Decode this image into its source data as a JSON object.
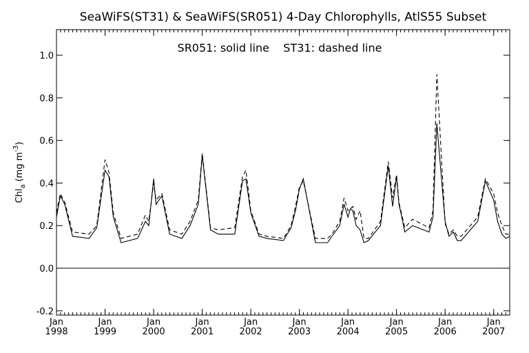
{
  "chart_data": {
    "type": "line",
    "title": "SeaWiFS(ST31) & SeaWiFS(SR051) 4-Day Chlorophylls, AtlS55 Subset",
    "annotation": "SR051: solid line    ST31: dashed line",
    "ylabel": "Chl",
    "ylabel_sub": "a",
    "ylabel_unit": "(mg m",
    "ylabel_sup": "-3",
    "ylabel_close": ")",
    "xlim": [
      1998.0,
      2007.33
    ],
    "ylim": [
      -0.22,
      1.12
    ],
    "y_ticks": [
      -0.2,
      0.0,
      0.2,
      0.4,
      0.6,
      0.8,
      1.0
    ],
    "y_tick_labels": [
      "-0.2",
      "0.0",
      "0.2",
      "0.4",
      "0.6",
      "0.8",
      "1.0"
    ],
    "x_ticks": [
      1998,
      1999,
      2000,
      2001,
      2002,
      2003,
      2004,
      2005,
      2006,
      2007
    ],
    "x_tick_month": "Jan",
    "x_tick_years": [
      "1998",
      "1999",
      "2000",
      "2001",
      "2002",
      "2003",
      "2004",
      "2005",
      "2006",
      "2007"
    ],
    "zero_line": 0.0,
    "grid": false,
    "series": [
      {
        "name": "SR051",
        "style": "solid",
        "color": "#000000",
        "x": [
          1998.0,
          1998.08,
          1998.17,
          1998.33,
          1998.67,
          1998.83,
          1999.0,
          1999.08,
          1999.17,
          1999.33,
          1999.67,
          1999.83,
          1999.9,
          2000.0,
          2000.05,
          2000.17,
          2000.33,
          2000.58,
          2000.75,
          2000.92,
          2001.0,
          2001.17,
          2001.33,
          2001.67,
          2001.83,
          2001.9,
          2002.0,
          2002.17,
          2002.33,
          2002.67,
          2002.83,
          2002.92,
          2003.0,
          2003.08,
          2003.33,
          2003.58,
          2003.67,
          2003.83,
          2003.92,
          2004.0,
          2004.05,
          2004.1,
          2004.17,
          2004.25,
          2004.33,
          2004.42,
          2004.67,
          2004.83,
          2004.92,
          2005.0,
          2005.05,
          2005.1,
          2005.17,
          2005.33,
          2005.67,
          2005.75,
          2005.83,
          2006.0,
          2006.08,
          2006.17,
          2006.25,
          2006.33,
          2006.67,
          2006.83,
          2007.0,
          2007.08,
          2007.17,
          2007.25,
          2007.33
        ],
        "values": [
          0.24,
          0.34,
          0.3,
          0.15,
          0.14,
          0.19,
          0.46,
          0.43,
          0.24,
          0.12,
          0.14,
          0.22,
          0.2,
          0.42,
          0.3,
          0.34,
          0.16,
          0.14,
          0.2,
          0.3,
          0.53,
          0.18,
          0.16,
          0.16,
          0.41,
          0.42,
          0.26,
          0.15,
          0.14,
          0.13,
          0.19,
          0.27,
          0.37,
          0.42,
          0.12,
          0.12,
          0.15,
          0.2,
          0.3,
          0.24,
          0.28,
          0.27,
          0.2,
          0.18,
          0.12,
          0.13,
          0.2,
          0.48,
          0.29,
          0.43,
          0.3,
          0.25,
          0.17,
          0.2,
          0.17,
          0.24,
          0.68,
          0.22,
          0.15,
          0.17,
          0.13,
          0.13,
          0.22,
          0.41,
          0.32,
          0.22,
          0.16,
          0.14,
          0.15
        ]
      },
      {
        "name": "ST31",
        "style": "dashed",
        "color": "#000000",
        "x": [
          1998.0,
          1998.08,
          1998.17,
          1998.33,
          1998.67,
          1998.83,
          1999.0,
          1999.08,
          1999.17,
          1999.33,
          1999.67,
          1999.83,
          1999.9,
          2000.0,
          2000.05,
          2000.17,
          2000.33,
          2000.58,
          2000.75,
          2000.92,
          2001.0,
          2001.17,
          2001.33,
          2001.67,
          2001.83,
          2001.9,
          2002.0,
          2002.17,
          2002.33,
          2002.67,
          2002.83,
          2002.92,
          2003.0,
          2003.08,
          2003.33,
          2003.58,
          2003.67,
          2003.83,
          2003.92,
          2004.0,
          2004.05,
          2004.1,
          2004.17,
          2004.25,
          2004.33,
          2004.42,
          2004.67,
          2004.83,
          2004.92,
          2005.0,
          2005.05,
          2005.1,
          2005.17,
          2005.33,
          2005.67,
          2005.75,
          2005.83,
          2006.0,
          2006.08,
          2006.17,
          2006.25,
          2006.33,
          2006.67,
          2006.83,
          2007.0,
          2007.08,
          2007.17,
          2007.25,
          2007.33
        ],
        "values": [
          0.26,
          0.35,
          0.31,
          0.17,
          0.16,
          0.2,
          0.51,
          0.45,
          0.26,
          0.14,
          0.16,
          0.25,
          0.22,
          0.4,
          0.32,
          0.35,
          0.18,
          0.16,
          0.22,
          0.32,
          0.54,
          0.19,
          0.18,
          0.19,
          0.43,
          0.46,
          0.27,
          0.16,
          0.15,
          0.14,
          0.2,
          0.29,
          0.38,
          0.41,
          0.14,
          0.14,
          0.16,
          0.22,
          0.33,
          0.27,
          0.28,
          0.29,
          0.23,
          0.27,
          0.14,
          0.14,
          0.22,
          0.5,
          0.33,
          0.44,
          0.31,
          0.26,
          0.19,
          0.23,
          0.19,
          0.27,
          0.91,
          0.21,
          0.16,
          0.18,
          0.15,
          0.15,
          0.24,
          0.42,
          0.35,
          0.26,
          0.2,
          0.16,
          0.16
        ]
      }
    ]
  }
}
